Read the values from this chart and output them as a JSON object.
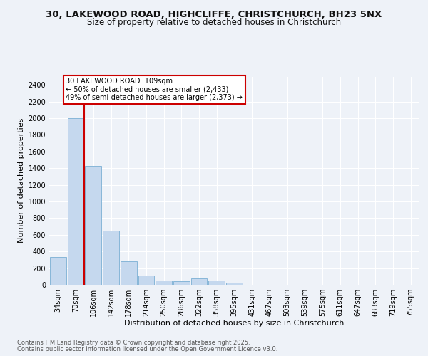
{
  "title_line1": "30, LAKEWOOD ROAD, HIGHCLIFFE, CHRISTCHURCH, BH23 5NX",
  "title_line2": "Size of property relative to detached houses in Christchurch",
  "xlabel": "Distribution of detached houses by size in Christchurch",
  "ylabel": "Number of detached properties",
  "categories": [
    "34sqm",
    "70sqm",
    "106sqm",
    "142sqm",
    "178sqm",
    "214sqm",
    "250sqm",
    "286sqm",
    "322sqm",
    "358sqm",
    "395sqm",
    "431sqm",
    "467sqm",
    "503sqm",
    "539sqm",
    "575sqm",
    "611sqm",
    "647sqm",
    "683sqm",
    "719sqm",
    "755sqm"
  ],
  "values": [
    330,
    2000,
    1430,
    650,
    280,
    110,
    55,
    45,
    80,
    55,
    25,
    4,
    3,
    2,
    1,
    1,
    0,
    0,
    0,
    0,
    0
  ],
  "bar_color": "#c5d8ee",
  "bar_edge_color": "#7aafd4",
  "vline_color": "#cc0000",
  "ylim": [
    0,
    2500
  ],
  "yticks": [
    0,
    200,
    400,
    600,
    800,
    1000,
    1200,
    1400,
    1600,
    1800,
    2000,
    2200,
    2400
  ],
  "annotation_title": "30 LAKEWOOD ROAD: 109sqm",
  "annotation_line1": "← 50% of detached houses are smaller (2,433)",
  "annotation_line2": "49% of semi-detached houses are larger (2,373) →",
  "annotation_box_color": "#ffffff",
  "annotation_box_edge": "#cc0000",
  "footer_line1": "Contains HM Land Registry data © Crown copyright and database right 2025.",
  "footer_line2": "Contains public sector information licensed under the Open Government Licence v3.0.",
  "bg_color": "#eef2f8",
  "grid_color": "#ffffff",
  "title_fontsize": 9.5,
  "subtitle_fontsize": 8.5,
  "tick_fontsize": 7,
  "ylabel_fontsize": 8,
  "xlabel_fontsize": 8
}
